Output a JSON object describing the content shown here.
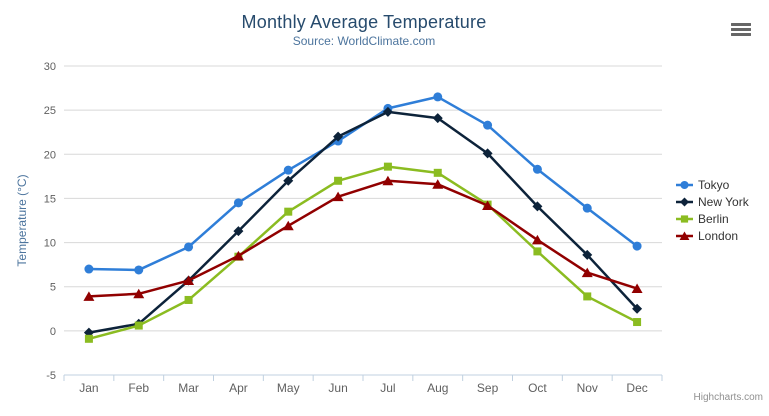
{
  "chart": {
    "credits_label": "Highcharts.com"
  },
  "icons": {
    "export_button": "hamburger-menu-icon"
  },
  "chart_data": {
    "type": "line",
    "title": "Monthly Average Temperature",
    "subtitle": "Source: WorldClimate.com",
    "xlabel": "",
    "ylabel": "Temperature (°C)",
    "categories": [
      "Jan",
      "Feb",
      "Mar",
      "Apr",
      "May",
      "Jun",
      "Jul",
      "Aug",
      "Sep",
      "Oct",
      "Nov",
      "Dec"
    ],
    "ylim": [
      -5,
      30
    ],
    "yticks": [
      -5,
      0,
      5,
      10,
      15,
      20,
      25,
      30
    ],
    "grid": true,
    "legend_position": "right",
    "series": [
      {
        "name": "Tokyo",
        "color": "#2f7ed8",
        "marker": "circle",
        "values": [
          7.0,
          6.9,
          9.5,
          14.5,
          18.2,
          21.5,
          25.2,
          26.5,
          23.3,
          18.3,
          13.9,
          9.6
        ]
      },
      {
        "name": "New York",
        "color": "#0d233a",
        "marker": "diamond",
        "values": [
          -0.2,
          0.8,
          5.7,
          11.3,
          17.0,
          22.0,
          24.8,
          24.1,
          20.1,
          14.1,
          8.6,
          2.5
        ]
      },
      {
        "name": "Berlin",
        "color": "#8bbc21",
        "marker": "square",
        "values": [
          -0.9,
          0.6,
          3.5,
          8.4,
          13.5,
          17.0,
          18.6,
          17.9,
          14.3,
          9.0,
          3.9,
          1.0
        ]
      },
      {
        "name": "London",
        "color": "#910000",
        "marker": "triangle",
        "values": [
          3.9,
          4.2,
          5.7,
          8.5,
          11.9,
          15.2,
          17.0,
          16.6,
          14.2,
          10.3,
          6.6,
          4.8
        ]
      }
    ],
    "colors": {
      "title": "#274b6d",
      "subtitle": "#4d759e",
      "axis_title": "#4d759e",
      "tick_label": "#606060",
      "grid": "#d8d8d8",
      "axis_line": "#c0d0e0",
      "legend_text": "#333333",
      "credits": "#909090"
    }
  }
}
